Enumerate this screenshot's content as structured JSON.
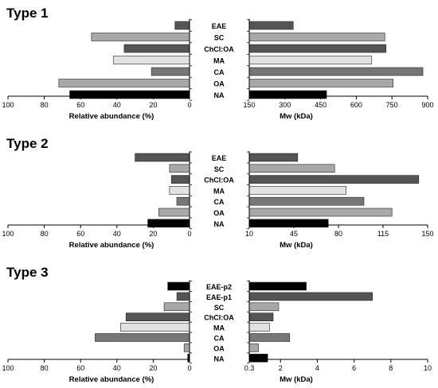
{
  "figure": {
    "x_axis_left_label": "Relative abundance (%)",
    "x_axis_right_label": "Mw (kDa)"
  },
  "chart_data": [
    {
      "type": "bar",
      "panel": "Type 1",
      "categories": [
        "EAE",
        "SC",
        "ChCl:OA",
        "MA",
        "CA",
        "OA",
        "NA"
      ],
      "left": {
        "xlabel": "Relative abundance (%)",
        "xlim": [
          100,
          0
        ],
        "ticks": [
          100,
          80,
          60,
          40,
          20,
          0
        ],
        "values": [
          8,
          54,
          36,
          42,
          21,
          72,
          66
        ]
      },
      "right": {
        "xlabel": "Mw (kDa)",
        "xlim": [
          150,
          900
        ],
        "ticks": [
          150,
          300,
          450,
          600,
          750,
          900
        ],
        "values": [
          335,
          720,
          725,
          665,
          880,
          755,
          475
        ]
      },
      "colors": [
        "#555555",
        "#a8a8a8",
        "#555555",
        "#e2e2e2",
        "#777777",
        "#a8a8a8",
        "#000000"
      ]
    },
    {
      "type": "bar",
      "panel": "Type 2",
      "categories": [
        "EAE",
        "SC",
        "ChCl:OA",
        "MA",
        "CA",
        "OA",
        "NA"
      ],
      "left": {
        "xlabel": "Relative abundance (%)",
        "xlim": [
          100,
          0
        ],
        "ticks": [
          100,
          80,
          60,
          40,
          20,
          0
        ],
        "values": [
          30,
          11,
          10,
          11,
          7,
          17,
          23
        ]
      },
      "right": {
        "xlabel": "Mw (kDa)",
        "xlim": [
          10,
          150
        ],
        "ticks": [
          10,
          45,
          80,
          115,
          150
        ],
        "values": [
          48,
          77,
          143,
          86,
          100,
          122,
          72
        ]
      },
      "colors": [
        "#555555",
        "#a8a8a8",
        "#555555",
        "#e2e2e2",
        "#777777",
        "#a8a8a8",
        "#000000"
      ]
    },
    {
      "type": "bar",
      "panel": "Type 3",
      "categories": [
        "EAE-p2",
        "EAE-p1",
        "SC",
        "ChCl:OA",
        "MA",
        "CA",
        "OA",
        "NA"
      ],
      "left": {
        "xlabel": "Relative abundance (%)",
        "xlim": [
          100,
          0
        ],
        "ticks": [
          100,
          80,
          60,
          40,
          20,
          0
        ],
        "values": [
          12,
          7,
          14,
          35,
          38,
          52,
          3,
          1
        ]
      },
      "right": {
        "xlabel": "Mw (kDa)",
        "xlim": [
          0.3,
          10
        ],
        "ticks": [
          0.3,
          2,
          4,
          6,
          8,
          10
        ],
        "values": [
          3.4,
          7,
          1.9,
          1.6,
          1.4,
          2.5,
          0.8,
          1.3
        ]
      },
      "colors": [
        "#000000",
        "#555555",
        "#a8a8a8",
        "#555555",
        "#e2e2e2",
        "#777777",
        "#a8a8a8",
        "#000000"
      ]
    }
  ]
}
